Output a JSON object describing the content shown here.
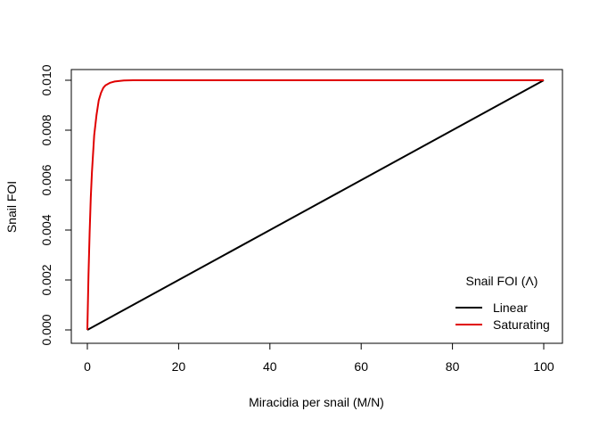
{
  "chart_data": {
    "type": "line",
    "title": "",
    "xlabel": "Miracidia per snail (M/N)",
    "ylabel": "Snail FOI",
    "xlim": [
      0,
      100
    ],
    "ylim": [
      0,
      0.01
    ],
    "x_ticks": [
      0,
      20,
      40,
      60,
      80,
      100
    ],
    "x_tick_labels": [
      "0",
      "20",
      "40",
      "60",
      "80",
      "100"
    ],
    "y_ticks": [
      0,
      0.002,
      0.004,
      0.006,
      0.008,
      0.01
    ],
    "y_tick_labels": [
      "0.000",
      "0.002",
      "0.004",
      "0.006",
      "0.008",
      "0.010"
    ],
    "grid": false,
    "legend": {
      "position": "bottom-right",
      "title": "Snail FOI (Λ)"
    },
    "series": [
      {
        "name": "Linear",
        "color": "#000000",
        "x": [
          0,
          10,
          20,
          30,
          40,
          50,
          60,
          70,
          80,
          90,
          100
        ],
        "y": [
          0,
          0.001,
          0.002,
          0.003,
          0.004,
          0.005,
          0.006,
          0.007,
          0.008,
          0.009,
          0.01
        ]
      },
      {
        "name": "Saturating",
        "color": "#e00000",
        "x": [
          0,
          0.25,
          0.5,
          0.75,
          1,
          1.5,
          2,
          2.5,
          3,
          3.5,
          4,
          5,
          6,
          8,
          10,
          20,
          40,
          60,
          80,
          100
        ],
        "y": [
          0,
          0.0022,
          0.0039,
          0.0053,
          0.0063,
          0.0078,
          0.0086,
          0.0092,
          0.0095,
          0.0097,
          0.0098,
          0.0099,
          0.00995,
          0.00999,
          0.01,
          0.01,
          0.01,
          0.01,
          0.01,
          0.01
        ]
      }
    ]
  }
}
